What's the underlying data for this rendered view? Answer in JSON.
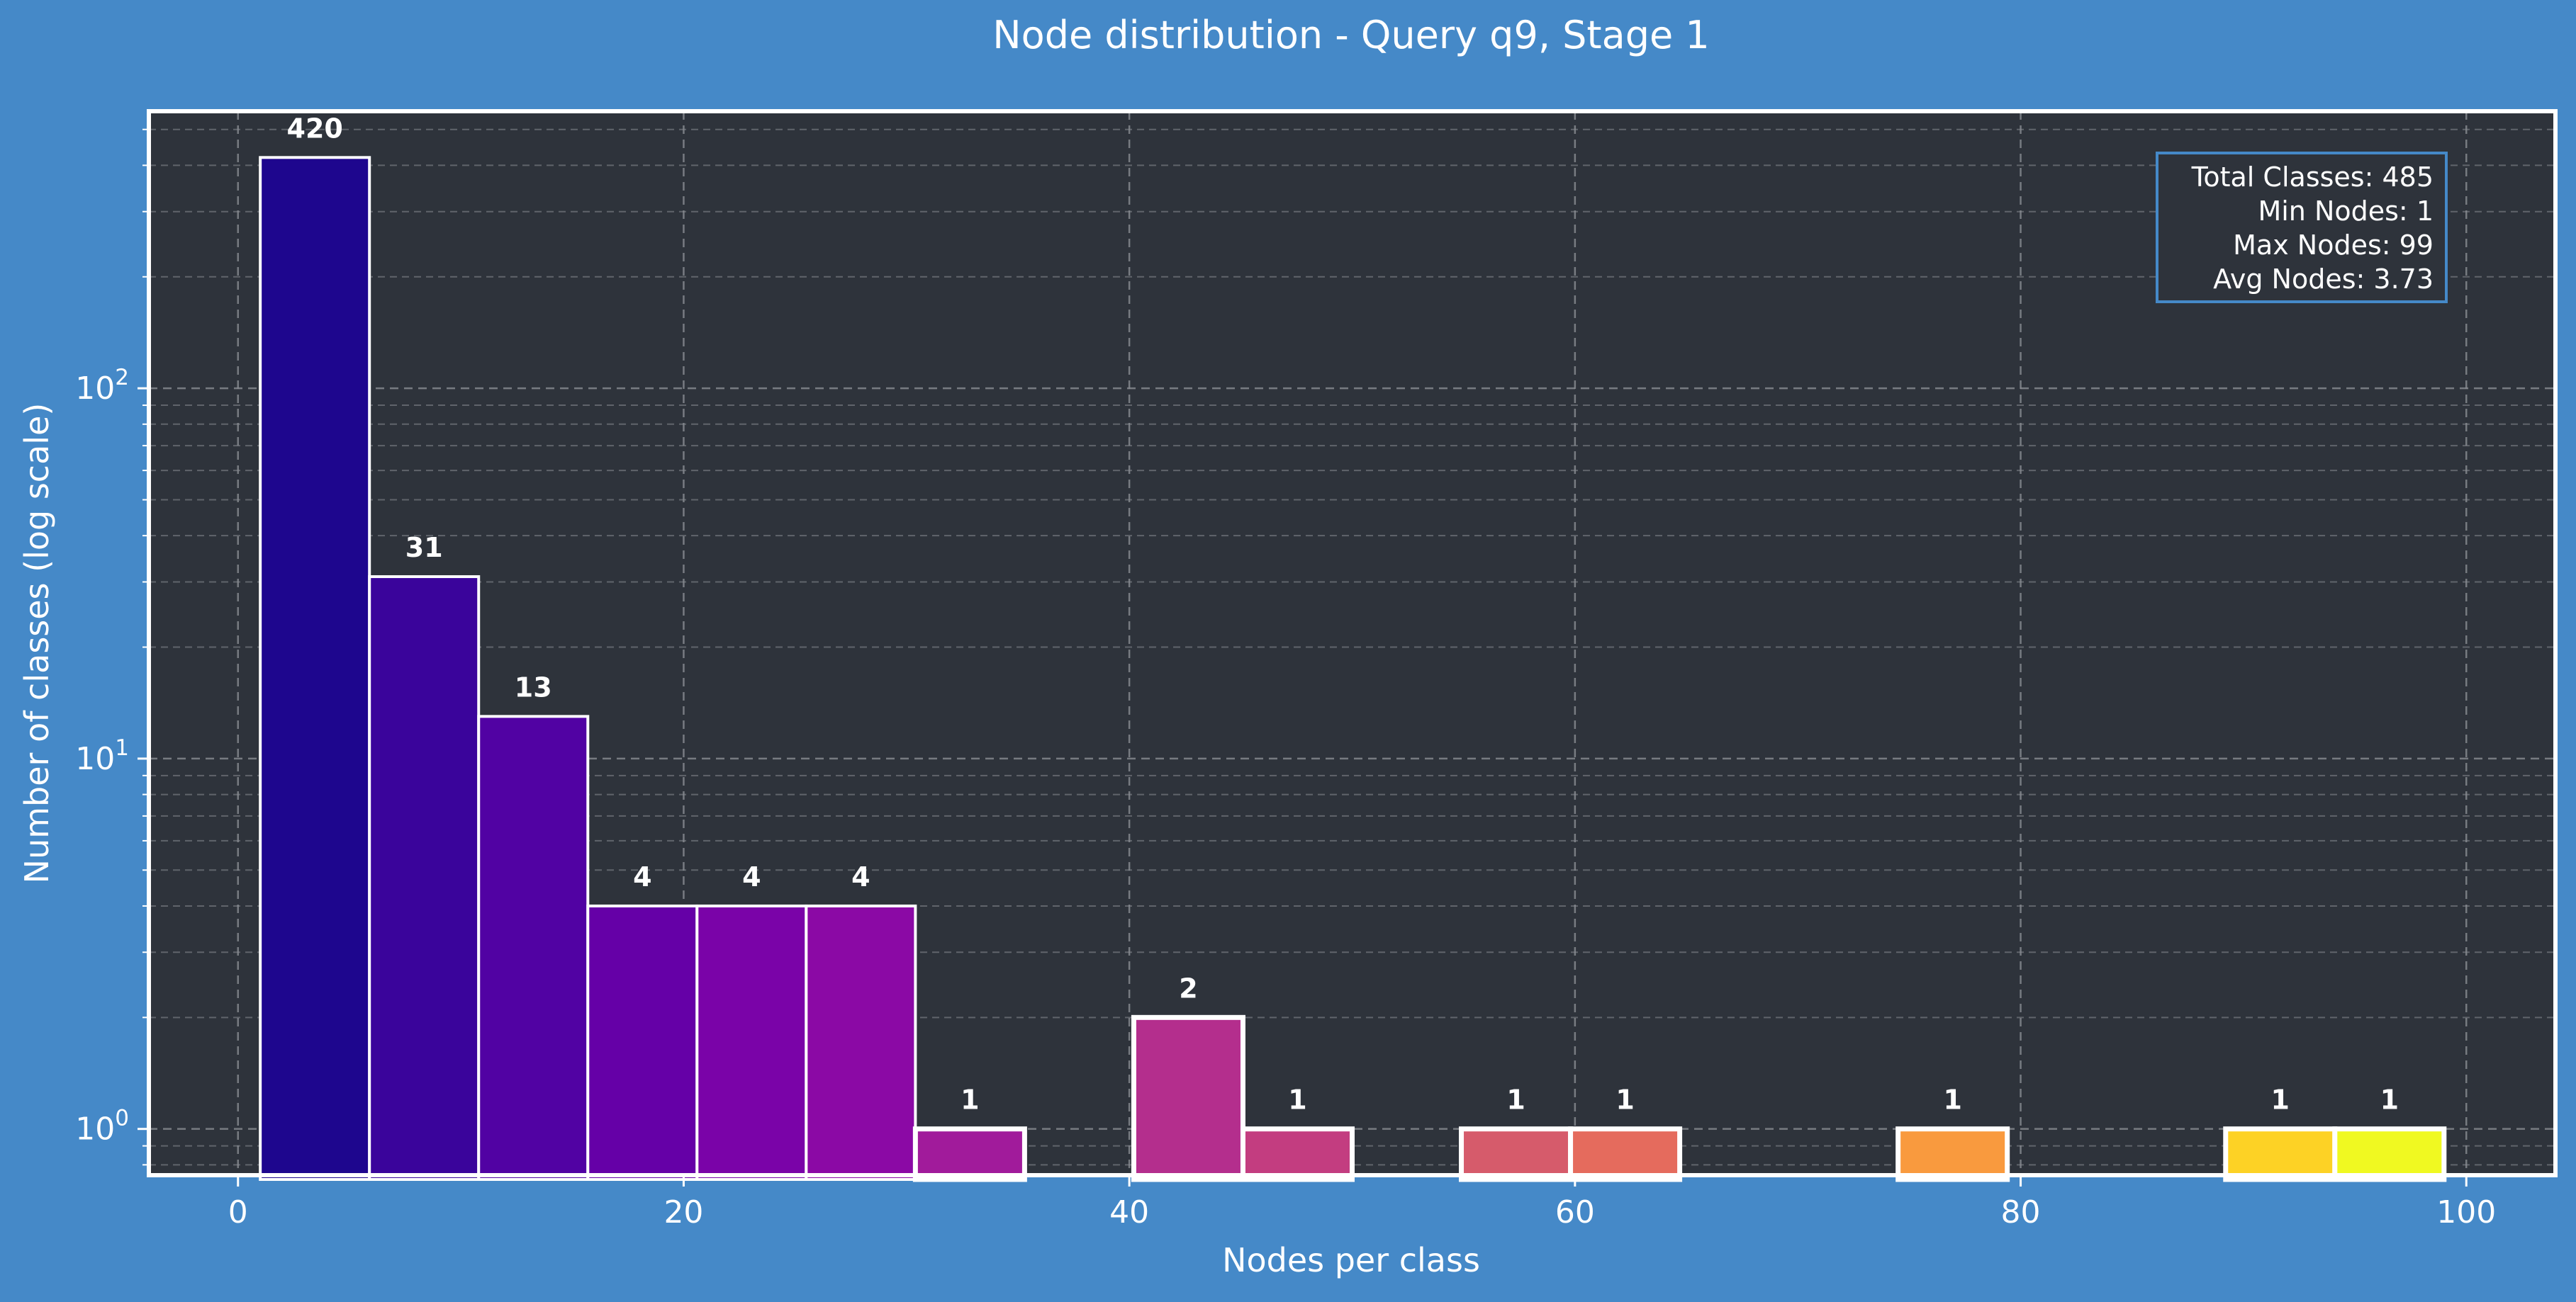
{
  "chart_data": {
    "type": "bar",
    "title": "Node distribution - Query q9, Stage 1",
    "xlabel": "Nodes per class",
    "ylabel": "Number of classes (log scale)",
    "y_scale": "log",
    "xlim": [
      -4,
      104
    ],
    "ylim": [
      0.75,
      560
    ],
    "x_ticks": [
      0,
      20,
      40,
      60,
      80,
      100
    ],
    "x_tick_labels": [
      "0",
      "20",
      "40",
      "60",
      "80",
      "100"
    ],
    "y_ticks": [
      1,
      10,
      100
    ],
    "y_tick_bases": [
      "10",
      "10",
      "10"
    ],
    "y_tick_exponents": [
      "0",
      "1",
      "2"
    ],
    "grid": true,
    "bins": [
      {
        "x0": 1.0,
        "x1": 5.9,
        "value": 420,
        "label": "420",
        "color": "#1e068e"
      },
      {
        "x0": 5.9,
        "x1": 10.8,
        "value": 31,
        "label": "31",
        "color": "#3a049b"
      },
      {
        "x0": 10.8,
        "x1": 15.7,
        "value": 13,
        "label": "13",
        "color": "#5102a3"
      },
      {
        "x0": 15.7,
        "x1": 20.6,
        "value": 4,
        "label": "4",
        "color": "#6500a7"
      },
      {
        "x0": 20.6,
        "x1": 25.5,
        "value": 4,
        "label": "4",
        "color": "#7a03a8"
      },
      {
        "x0": 25.5,
        "x1": 30.4,
        "value": 4,
        "label": "4",
        "color": "#8b09a5"
      },
      {
        "x0": 30.4,
        "x1": 35.3,
        "value": 1,
        "label": "1",
        "color": "#a11b9b"
      },
      {
        "x0": 40.2,
        "x1": 45.1,
        "value": 2,
        "label": "2",
        "color": "#b42e8d"
      },
      {
        "x0": 45.1,
        "x1": 50.0,
        "value": 1,
        "label": "1",
        "color": "#c33d80"
      },
      {
        "x0": 54.9,
        "x1": 59.8,
        "value": 1,
        "label": "1",
        "color": "#d65b6b"
      },
      {
        "x0": 59.8,
        "x1": 64.7,
        "value": 1,
        "label": "1",
        "color": "#e56b5d"
      },
      {
        "x0": 74.5,
        "x1": 79.4,
        "value": 1,
        "label": "1",
        "color": "#f99a3e"
      },
      {
        "x0": 89.2,
        "x1": 94.1,
        "value": 1,
        "label": "1",
        "color": "#fdd225"
      },
      {
        "x0": 94.1,
        "x1": 99.0,
        "value": 1,
        "label": "1",
        "color": "#f0f921"
      }
    ],
    "stats_lines": [
      "Total Classes: 485",
      "Min Nodes: 1",
      "Max Nodes: 99",
      "Avg Nodes: 3.73"
    ],
    "stats_placement": "top-right"
  },
  "colors": {
    "figure_background": "#4589c8",
    "plot_background": "#2e333b",
    "text": "#ffffff",
    "grid": "#8a8d93",
    "stats_border": "#4589c8"
  }
}
